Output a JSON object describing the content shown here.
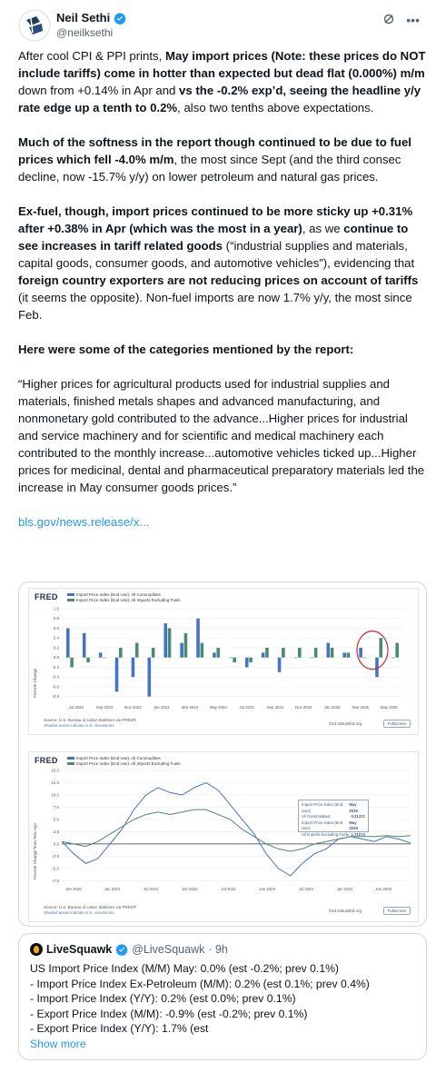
{
  "header": {
    "name": "Neil Sethi",
    "handle": "@neilksethi"
  },
  "tweet": {
    "p1": [
      "After cool CPI & PPI prints, ",
      "May import prices (Note: these prices do NOT include tariffs) come in hotter than expected but dead flat (0.000%) m/m",
      " down from +0.14% in Apr and ",
      "vs the -0.2% exp’d, seeing the headline y/y rate edge up a tenth to 0.2%",
      ", also two tenths above expectations."
    ],
    "p2": [
      "Much of the softness in the report though continued to be due to fuel prices which fell -4.0% m/m",
      ", the most since Sept (and the third consec decline, now -15.7% y/y) on lower petroleum and natural gas prices."
    ],
    "p3": [
      "Ex-fuel, though, import prices continued to be more sticky up +0.31% after +0.38% in Apr (which was the most in a year)",
      ", as we ",
      "continue to see increases in tariff related goods",
      " (“industrial supplies and materials, capital goods, consumer goods, and automotive vehicles”), evidencing that ",
      "foreign country exporters are not reducing prices on account of tariffs",
      " (it seems the opposite). Non-fuel imports are now 1.7% y/y, the most since Feb."
    ],
    "p4": "Here were some of the categories mentioned by the report:",
    "p5": "“Higher prices for agricultural products used for industrial supplies and materials, finished metals shapes and advanced manufacturing, and nonmonetary gold contributed to the advance...Higher prices for industrial and service machinery and for scientific and medical machinery each contributed to the monthly increase...automotive vehicles ticked up...Higher prices for medicinal, dental and pharmaceutical preparatory materials led the increase in May consumer goods prices.”",
    "link": "bls.gov/news.release/x..."
  },
  "chart_data": [
    {
      "type": "bar",
      "logo": "FRED",
      "legend": [
        "Import Price Index (End Use): All Commodities",
        "Import Price Index (End Use): All Imports Excluding Fuels"
      ],
      "ylabel": "Percent Change",
      "yticks": [
        "1.0",
        "0.8",
        "0.6",
        "0.4",
        "0.2",
        "0.0",
        "-0.2",
        "-0.4",
        "-0.6",
        "-0.8"
      ],
      "ylim": [
        -0.9,
        1.0
      ],
      "xticks": [
        "Jul 2023",
        "Sep 2023",
        "Nov 2023",
        "Jan 2024",
        "Mar 2024",
        "May 2024",
        "Jul 2024",
        "Sep 2024",
        "Nov 2024",
        "Jan 2025",
        "Mar 2025",
        "May 2025"
      ],
      "series": [
        {
          "name": "Import Price Index (End Use): All Commodities",
          "color": "#4472c4",
          "values": [
            0.6,
            0.5,
            0.1,
            -0.7,
            -0.4,
            -0.8,
            0.7,
            0.3,
            0.8,
            0.1,
            0.0,
            -0.2,
            0.1,
            -0.3,
            0.0,
            0.0,
            0.3,
            0.1,
            0.2,
            -0.4,
            0.0
          ]
        },
        {
          "name": "Import Price Index (End Use): All Imports Excluding Fuels",
          "color": "#4a8a6e",
          "values": [
            -0.2,
            -0.1,
            0.0,
            0.2,
            0.3,
            0.2,
            0.6,
            0.5,
            0.3,
            0.2,
            -0.1,
            -0.1,
            0.2,
            0.2,
            0.2,
            0.2,
            0.2,
            0.1,
            0.0,
            0.4,
            0.3
          ]
        }
      ],
      "source": "Source: U.S. Bureau of Labor Statistics via FRED®",
      "note": "Shaded areas indicate U.S. recessions.",
      "site": "fred.stlouisfed.org",
      "fullscreen": "Fullscreen"
    },
    {
      "type": "line",
      "logo": "FRED",
      "legend": [
        "Import Price Index (End Use): All Commodities",
        "Import Price Index (End Use): All Imports Excluding Fuels"
      ],
      "ylabel": "Percent Change from Year Ago",
      "yticks": [
        "15.0",
        "12.5",
        "10.0",
        "7.5",
        "5.0",
        "2.5",
        "0.0",
        "-2.5",
        "-5.0",
        "-7.5"
      ],
      "ylim": [
        -8,
        15
      ],
      "xticks": [
        "Jan 2020",
        "Jan 2021",
        "Jul 2021",
        "Jan 2022",
        "Jul 2022",
        "Jan 2023",
        "Jul 2023",
        "Jan 2024",
        "Jan 2025"
      ],
      "series": [
        {
          "name": "Import Price Index (End Use): All Commodities",
          "color": "#4472c4",
          "values": [
            0.5,
            -2,
            -4,
            -3,
            0,
            3,
            7,
            10,
            11.5,
            10.5,
            10,
            11.5,
            12.5,
            11,
            8,
            5,
            2,
            -2,
            -5,
            -6.5,
            -4,
            -2,
            -1,
            1,
            1.5,
            1,
            0.5,
            1.5,
            1,
            0.2
          ]
        },
        {
          "name": "Import Price Index (End Use): All Imports Excluding Fuels",
          "color": "#4a8a6e",
          "values": [
            0.5,
            0,
            -0.5,
            0.5,
            2,
            3.5,
            5,
            6,
            6.5,
            6,
            6.5,
            7,
            7,
            6,
            5,
            3,
            1.5,
            0,
            -1,
            -1.5,
            -1,
            0,
            0.5,
            1,
            1.5,
            1.5,
            1.5,
            1.7,
            1.5,
            1.7
          ]
        }
      ],
      "box": {
        "r1": "Import Price Index (End Use):",
        "r1d": "May 2025",
        "r2": "All Commodities:",
        "r2v": "0.21221",
        "r3": "Import Price Index (End Use):",
        "r3d": "May 2025",
        "r4": "All Imports Excluding Fuels:",
        "r4v": "1.71073"
      },
      "source": "Source: U.S. Bureau of Labor Statistics via FRED®",
      "note": "Shaded areas indicate U.S. recessions.",
      "site": "fred.stlouisfed.org",
      "fullscreen": "Fullscreen"
    }
  ],
  "quote": {
    "name": "LiveSquawk",
    "handle": "@LiveSquawk",
    "time": "· 9h",
    "lines": [
      "US Import Price Index (M/M) May: 0.0% (est -0.2%; prev 0.1%)",
      "- Import Price Index Ex-Petroleum (M/M): 0.2% (est 0.1%; prev 0.4%)",
      "- Import Price Index (Y/Y): 0.2% (est 0.0%; prev 0.1%)",
      "- Export Price Index (M/M): -0.9% (est -0.2%; prev 0.1%)",
      "- Export Price Index (Y/Y): 1.7% (est"
    ],
    "show_more": "Show more"
  }
}
